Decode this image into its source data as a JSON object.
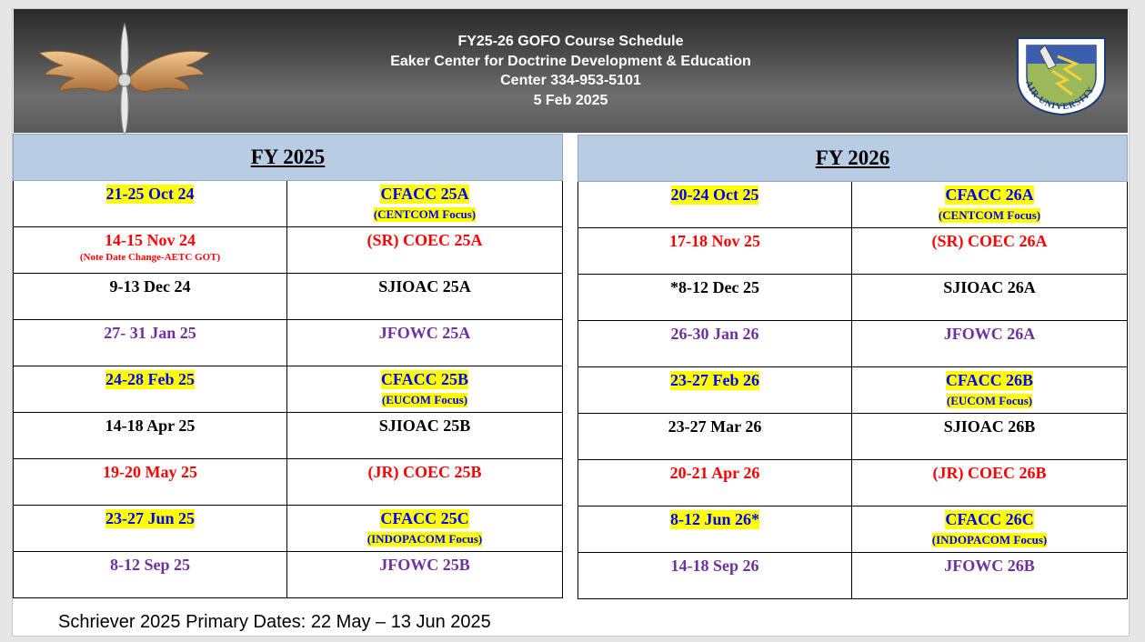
{
  "header": {
    "line1": "FY25-26 GOFO Course Schedule",
    "line2": "Eaker Center for Doctrine Development & Education",
    "line3": "Center 334-953-5101",
    "line4": "5 Feb  2025",
    "emblem_text": "AIR UNIVERSITY"
  },
  "fy2025": {
    "title": " FY 2025",
    "rows": [
      {
        "date": "21-25 Oct 24",
        "date_note": "",
        "course": "CFACC 25A",
        "course_note": "(CENTCOM Focus)",
        "color": "blue",
        "highlight": true
      },
      {
        "date": "14-15 Nov 24",
        "date_note": "(Note Date Change-AETC GOT)",
        "course": "(SR) COEC 25A",
        "course_note": "",
        "color": "red",
        "highlight": false
      },
      {
        "date": "9-13 Dec 24",
        "date_note": "",
        "course": "SJIOAC 25A",
        "course_note": "",
        "color": "black",
        "highlight": false
      },
      {
        "date": "27- 31 Jan 25",
        "date_note": "",
        "course": "JFOWC 25A",
        "course_note": "",
        "color": "purple",
        "highlight": false
      },
      {
        "date": "24-28 Feb 25",
        "date_note": "",
        "course": "CFACC 25B",
        "course_note": "(EUCOM Focus)",
        "color": "blue",
        "highlight": true
      },
      {
        "date": "14-18 Apr 25",
        "date_note": "",
        "course": "SJIOAC 25B",
        "course_note": "",
        "color": "black",
        "highlight": false
      },
      {
        "date": "19-20 May 25",
        "date_note": "",
        "course": "(JR) COEC 25B",
        "course_note": "",
        "color": "red",
        "highlight": false
      },
      {
        "date": "23-27 Jun 25",
        "date_note": "",
        "course": "CFACC 25C",
        "course_note": "(INDOPACOM Focus)",
        "color": "blue",
        "highlight": true
      },
      {
        "date": "8-12 Sep 25",
        "date_note": "",
        "course": "JFOWC 25B",
        "course_note": "",
        "color": "purple",
        "highlight": false
      }
    ]
  },
  "fy2026": {
    "title": " FY 2026",
    "rows": [
      {
        "date": "20-24 Oct 25",
        "date_note": "",
        "course": "CFACC 26A",
        "course_note": "(CENTCOM Focus)",
        "color": "blue",
        "highlight": true
      },
      {
        "date": "17-18 Nov 25",
        "date_note": "",
        "course": "(SR) COEC 26A",
        "course_note": "",
        "color": "red",
        "highlight": false
      },
      {
        "date": "*8-12 Dec 25",
        "date_note": "",
        "course": "SJIOAC 26A",
        "course_note": "",
        "color": "black",
        "highlight": false
      },
      {
        "date": "26-30 Jan 26",
        "date_note": "",
        "course": "JFOWC 26A",
        "course_note": "",
        "color": "purple",
        "highlight": false
      },
      {
        "date": "23-27 Feb 26",
        "date_note": "",
        "course": "CFACC 26B",
        "course_note": "(EUCOM Focus)",
        "color": "blue",
        "highlight": true
      },
      {
        "date": "23-27 Mar 26",
        "date_note": "",
        "course": "SJIOAC 26B",
        "course_note": "",
        "color": "black",
        "highlight": false
      },
      {
        "date": "20-21 Apr 26",
        "date_note": "",
        "course": "(JR) COEC 26B",
        "course_note": "",
        "color": "red",
        "highlight": false
      },
      {
        "date": "8-12 Jun 26*",
        "date_note": "",
        "course": "CFACC 26C",
        "course_note": "(INDOPACOM Focus)",
        "color": "blue",
        "highlight": true
      },
      {
        "date": "14-18 Sep 26",
        "date_note": "",
        "course": "JFOWC 26B",
        "course_note": "",
        "color": "purple",
        "highlight": false
      }
    ]
  },
  "footer": {
    "text": "Schriever 2025 Primary Dates: 22 May – 13 Jun 2025"
  },
  "colors": {
    "blue": "#0000ff",
    "red": "#ff0000",
    "purple": "#7030a0",
    "highlight": "#ffff00",
    "header_fill": "#b8cce4"
  }
}
